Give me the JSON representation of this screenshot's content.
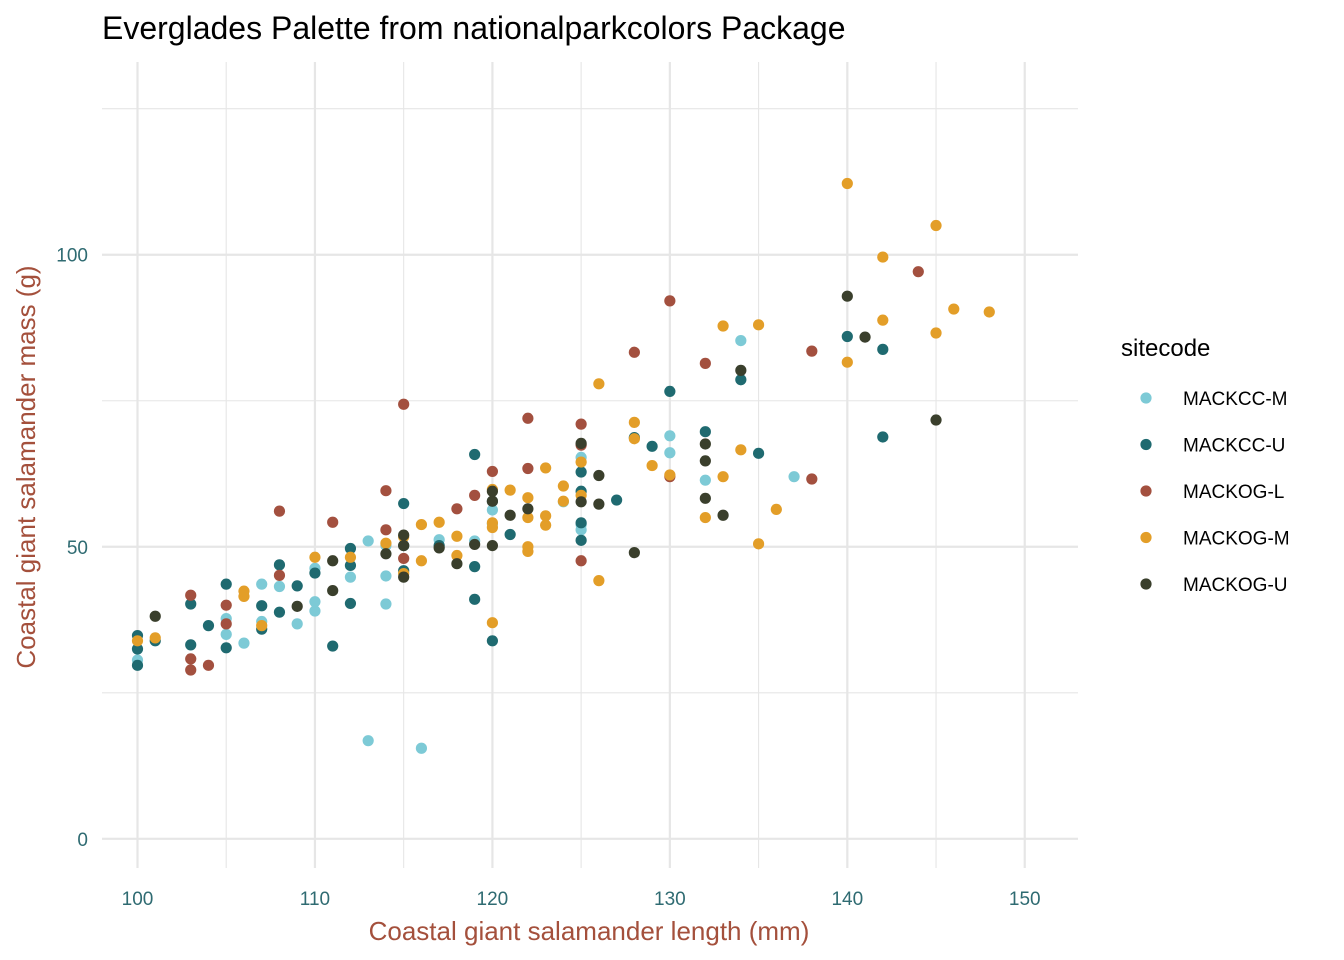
{
  "chart_data": {
    "type": "scatter",
    "title": "Everglades Palette from nationalparkcolors Package",
    "xlabel": "Coastal giant salamander length (mm)",
    "ylabel": "Coastal giant salamander mass (g)",
    "xlim": [
      98,
      153
    ],
    "ylim": [
      -5,
      133
    ],
    "x_major_ticks": [
      100,
      110,
      120,
      130,
      140,
      150
    ],
    "x_minor_ticks": [
      105,
      115,
      125,
      135,
      145
    ],
    "y_major_ticks": [
      0,
      50,
      100
    ],
    "y_minor_ticks": [
      25,
      75,
      125
    ],
    "x_tick_labels": [
      "100",
      "110",
      "120",
      "130",
      "140",
      "150"
    ],
    "y_tick_labels": [
      "0",
      "50",
      "100"
    ],
    "grid": true,
    "legend": {
      "title": "sitecode",
      "position": "right"
    },
    "colors": {
      "axis_title": "#A4503C",
      "tick_label": "#2F6B72",
      "grid": "#E6E6E6"
    },
    "series": [
      {
        "name": "MACKCC-M",
        "color": "#7DCAD6",
        "points": [
          [
            100,
            30.6
          ],
          [
            105,
            35
          ],
          [
            105,
            37.7
          ],
          [
            106,
            33.5
          ],
          [
            107,
            37.2
          ],
          [
            107,
            43.6
          ],
          [
            108,
            43.2
          ],
          [
            109,
            36.8
          ],
          [
            110,
            39
          ],
          [
            110,
            40.6
          ],
          [
            110,
            46.3
          ],
          [
            112,
            44.8
          ],
          [
            113,
            51
          ],
          [
            113,
            16.8
          ],
          [
            114,
            50.2
          ],
          [
            114,
            45
          ],
          [
            114,
            40.2
          ],
          [
            116,
            15.5
          ],
          [
            117,
            51.2
          ],
          [
            119,
            51
          ],
          [
            120,
            56.3
          ],
          [
            120,
            53.9
          ],
          [
            124,
            57.7
          ],
          [
            125,
            65.3
          ],
          [
            125,
            52.9
          ],
          [
            125,
            53.8
          ],
          [
            130,
            69
          ],
          [
            130,
            66.1
          ],
          [
            132,
            61.4
          ],
          [
            134,
            85.3
          ],
          [
            137,
            62
          ]
        ]
      },
      {
        "name": "MACKCC-U",
        "color": "#1F6A70",
        "points": [
          [
            100,
            29.7
          ],
          [
            100,
            32.5
          ],
          [
            100,
            34.8
          ],
          [
            101,
            33.9
          ],
          [
            103,
            40.2
          ],
          [
            103,
            33.2
          ],
          [
            104,
            36.5
          ],
          [
            105,
            43.6
          ],
          [
            105,
            32.7
          ],
          [
            107,
            35.9
          ],
          [
            107,
            39.9
          ],
          [
            108,
            38.8
          ],
          [
            108,
            46.9
          ],
          [
            109,
            43.3
          ],
          [
            110,
            45.5
          ],
          [
            111,
            33
          ],
          [
            112,
            40.3
          ],
          [
            112,
            46.8
          ],
          [
            112,
            49.7
          ],
          [
            115,
            57.4
          ],
          [
            115,
            45.9
          ],
          [
            115,
            50.2
          ],
          [
            117,
            50.2
          ],
          [
            119,
            65.8
          ],
          [
            119,
            41
          ],
          [
            119,
            46.6
          ],
          [
            120,
            33.9
          ],
          [
            120,
            57.8
          ],
          [
            121,
            52.1
          ],
          [
            125,
            62.8
          ],
          [
            125,
            59.5
          ],
          [
            125,
            54.1
          ],
          [
            125,
            51.1
          ],
          [
            127,
            58
          ],
          [
            128,
            68.7
          ],
          [
            129,
            67.2
          ],
          [
            130,
            76.6
          ],
          [
            132,
            69.7
          ],
          [
            134,
            78.6
          ],
          [
            135,
            66
          ],
          [
            140,
            86
          ],
          [
            142,
            68.8
          ],
          [
            142,
            83.8
          ]
        ]
      },
      {
        "name": "MACKOG-L",
        "color": "#A3503F",
        "points": [
          [
            103,
            41.7
          ],
          [
            103,
            30.8
          ],
          [
            103,
            28.9
          ],
          [
            104,
            29.7
          ],
          [
            105,
            36.8
          ],
          [
            105,
            40
          ],
          [
            108,
            56.1
          ],
          [
            108,
            45.1
          ],
          [
            111,
            54.2
          ],
          [
            114,
            59.6
          ],
          [
            114,
            52.9
          ],
          [
            115,
            74.4
          ],
          [
            115,
            48
          ],
          [
            118,
            56.5
          ],
          [
            119,
            58.8
          ],
          [
            120,
            62.9
          ],
          [
            122,
            72
          ],
          [
            122,
            63.4
          ],
          [
            125,
            71
          ],
          [
            125,
            67.4
          ],
          [
            125,
            47.6
          ],
          [
            128,
            83.3
          ],
          [
            130,
            92.1
          ],
          [
            130,
            62
          ],
          [
            132,
            81.4
          ],
          [
            138,
            83.5
          ],
          [
            138,
            61.6
          ],
          [
            144,
            97.1
          ]
        ]
      },
      {
        "name": "MACKOG-M",
        "color": "#E39E28",
        "points": [
          [
            100,
            33.9
          ],
          [
            101,
            34.4
          ],
          [
            106,
            41.5
          ],
          [
            106,
            42.4
          ],
          [
            107,
            36.5
          ],
          [
            110,
            48.2
          ],
          [
            112,
            48.2
          ],
          [
            114,
            50.6
          ],
          [
            115,
            51.7
          ],
          [
            115,
            45.4
          ],
          [
            116,
            53.8
          ],
          [
            116,
            47.6
          ],
          [
            117,
            54.2
          ],
          [
            118,
            51.8
          ],
          [
            118,
            48.5
          ],
          [
            120,
            59.8
          ],
          [
            120,
            53.3
          ],
          [
            120,
            54.1
          ],
          [
            120,
            37
          ],
          [
            121,
            59.7
          ],
          [
            122,
            58.4
          ],
          [
            122,
            55
          ],
          [
            122,
            50
          ],
          [
            122,
            49.2
          ],
          [
            123,
            63.5
          ],
          [
            123,
            55.3
          ],
          [
            123,
            53.7
          ],
          [
            124,
            60.4
          ],
          [
            124,
            57.8
          ],
          [
            125,
            58.8
          ],
          [
            125,
            64.5
          ],
          [
            126,
            77.9
          ],
          [
            126,
            44.2
          ],
          [
            128,
            71.3
          ],
          [
            128,
            68.5
          ],
          [
            129,
            63.9
          ],
          [
            130,
            62.3
          ],
          [
            132,
            55
          ],
          [
            133,
            87.8
          ],
          [
            133,
            62
          ],
          [
            134,
            66.6
          ],
          [
            135,
            88
          ],
          [
            135,
            50.5
          ],
          [
            136,
            56.4
          ],
          [
            140,
            112.2
          ],
          [
            140,
            81.6
          ],
          [
            142,
            99.6
          ],
          [
            142,
            88.8
          ],
          [
            145,
            105
          ],
          [
            145,
            86.6
          ],
          [
            146,
            90.7
          ],
          [
            148,
            90.2
          ]
        ]
      },
      {
        "name": "MACKOG-U",
        "color": "#3A3F2C",
        "points": [
          [
            101,
            38.1
          ],
          [
            109,
            39.8
          ],
          [
            111,
            47.6
          ],
          [
            111,
            42.5
          ],
          [
            114,
            48.8
          ],
          [
            115,
            52
          ],
          [
            115,
            50.2
          ],
          [
            115,
            44.8
          ],
          [
            117,
            49.8
          ],
          [
            118,
            47.1
          ],
          [
            119,
            50.4
          ],
          [
            120,
            57.8
          ],
          [
            120,
            59.5
          ],
          [
            120,
            50.2
          ],
          [
            121,
            55.4
          ],
          [
            122,
            56.5
          ],
          [
            125,
            67.7
          ],
          [
            125,
            57.7
          ],
          [
            126,
            62.2
          ],
          [
            126,
            57.3
          ],
          [
            128,
            49
          ],
          [
            132,
            67.6
          ],
          [
            132,
            64.7
          ],
          [
            132,
            58.3
          ],
          [
            133,
            55.4
          ],
          [
            134,
            80.2
          ],
          [
            140,
            92.9
          ],
          [
            141,
            85.9
          ],
          [
            145,
            71.7
          ]
        ]
      }
    ]
  }
}
